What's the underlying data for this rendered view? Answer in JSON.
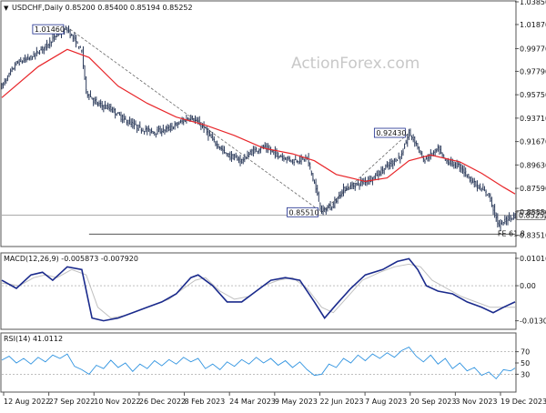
{
  "header": {
    "symbol_ohlc": "USDCHF,Daily  0.85200 0.85400 0.85194 0.85252",
    "watermark": "ActionForex.com"
  },
  "chart_data": [
    {
      "type": "candlestick",
      "title": "USDCHF,Daily",
      "ohlc_last": {
        "open": 0.852,
        "high": 0.854,
        "low": 0.85194,
        "close": 0.85252
      },
      "ylim": [
        0.826,
        1.0385
      ],
      "y_ticks": [
        "1.03850",
        "1.01870",
        "0.99770",
        "0.97790",
        "0.95750",
        "0.93710",
        "0.91670",
        "0.89630",
        "0.87590",
        "0.85550",
        "0.83510"
      ],
      "x_ticks": [
        "12 Aug 2022",
        "27 Sep 2022",
        "10 Nov 2022",
        "26 Dec 2022",
        "8 Feb 2023",
        "24 Mar 2023",
        "9 May 2023",
        "22 Jun 2023",
        "7 Aug 2023",
        "20 Sep 2023",
        "3 Nov 2023",
        "19 Dec 2023"
      ],
      "price_path": [
        [
          0,
          0.965
        ],
        [
          10,
          0.985
        ],
        [
          20,
          0.99
        ],
        [
          30,
          1.0
        ],
        [
          40,
          1.012
        ],
        [
          45,
          1.0146
        ],
        [
          50,
          1.005
        ],
        [
          55,
          0.995
        ],
        [
          58,
          0.96
        ],
        [
          65,
          0.95
        ],
        [
          75,
          0.945
        ],
        [
          85,
          0.935
        ],
        [
          95,
          0.928
        ],
        [
          105,
          0.925
        ],
        [
          115,
          0.928
        ],
        [
          125,
          0.935
        ],
        [
          130,
          0.938
        ],
        [
          138,
          0.93
        ],
        [
          145,
          0.918
        ],
        [
          155,
          0.905
        ],
        [
          165,
          0.9
        ],
        [
          172,
          0.908
        ],
        [
          180,
          0.912
        ],
        [
          190,
          0.905
        ],
        [
          200,
          0.9
        ],
        [
          210,
          0.902
        ],
        [
          215,
          0.88
        ],
        [
          220,
          0.8551
        ],
        [
          228,
          0.862
        ],
        [
          235,
          0.875
        ],
        [
          245,
          0.88
        ],
        [
          255,
          0.885
        ],
        [
          265,
          0.895
        ],
        [
          275,
          0.905
        ],
        [
          280,
          0.9243
        ],
        [
          285,
          0.915
        ],
        [
          290,
          0.9
        ],
        [
          300,
          0.91
        ],
        [
          305,
          0.9
        ],
        [
          315,
          0.895
        ],
        [
          325,
          0.88
        ],
        [
          335,
          0.87
        ],
        [
          340,
          0.85
        ],
        [
          342,
          0.843
        ],
        [
          348,
          0.85
        ],
        [
          353,
          0.8525
        ]
      ],
      "series": [
        {
          "name": "",
          "kind": "moving-average",
          "color": "#e8262a",
          "values": [
            [
              0,
              0.955
            ],
            [
              25,
              0.982
            ],
            [
              45,
              0.997
            ],
            [
              60,
              0.99
            ],
            [
              80,
              0.965
            ],
            [
              100,
              0.95
            ],
            [
              120,
              0.938
            ],
            [
              140,
              0.931
            ],
            [
              160,
              0.922
            ],
            [
              180,
              0.911
            ],
            [
              200,
              0.906
            ],
            [
              215,
              0.9
            ],
            [
              230,
              0.888
            ],
            [
              250,
              0.882
            ],
            [
              265,
              0.885
            ],
            [
              280,
              0.9
            ],
            [
              295,
              0.905
            ],
            [
              315,
              0.899
            ],
            [
              330,
              0.889
            ],
            [
              345,
              0.877
            ],
            [
              353,
              0.871
            ]
          ]
        }
      ],
      "labels": [
        {
          "text": "1.01460",
          "x": 45,
          "y": 1.0146
        },
        {
          "text": "0.85510",
          "x": 220,
          "y": 0.8551
        },
        {
          "text": "0.92430",
          "x": 280,
          "y": 0.9243
        },
        {
          "text": "0.85252",
          "x": 353,
          "y": 0.85252,
          "role": "last-price"
        },
        {
          "text": "FE 61.8",
          "x": 346,
          "y": 0.836
        }
      ],
      "trendlines": [
        {
          "from": [
            47,
            1.0146
          ],
          "to": [
            220,
            0.8551
          ],
          "style": "dashed"
        },
        {
          "from": [
            220,
            0.8551
          ],
          "to": [
            280,
            0.9243
          ],
          "style": "dashed"
        }
      ],
      "levels": [
        {
          "y": 0.836,
          "label": "FE 61.8"
        },
        {
          "y": 0.85252,
          "label": "0.85252"
        }
      ],
      "grid": false
    },
    {
      "type": "line",
      "title": "MACD(12,26,9) -0.005873 -0.007920",
      "ylim": [
        -0.0155,
        0.0115
      ],
      "y_ticks": [
        "0.010166",
        "0.00",
        "-0.013006"
      ],
      "series": [
        {
          "name": "",
          "color": "#1a2a8c",
          "values": [
            [
              0,
              0.002
            ],
            [
              10,
              -0.001
            ],
            [
              20,
              0.004
            ],
            [
              28,
              0.005
            ],
            [
              35,
              0.002
            ],
            [
              45,
              0.007
            ],
            [
              55,
              0.006
            ],
            [
              62,
              -0.012
            ],
            [
              70,
              -0.013
            ],
            [
              80,
              -0.012
            ],
            [
              90,
              -0.01
            ],
            [
              100,
              -0.008
            ],
            [
              110,
              -0.006
            ],
            [
              120,
              -0.003
            ],
            [
              130,
              0.003
            ],
            [
              135,
              0.004
            ],
            [
              145,
              0.0
            ],
            [
              155,
              -0.006
            ],
            [
              165,
              -0.006
            ],
            [
              175,
              -0.002
            ],
            [
              185,
              0.002
            ],
            [
              195,
              0.003
            ],
            [
              205,
              0.002
            ],
            [
              215,
              -0.006
            ],
            [
              222,
              -0.012
            ],
            [
              230,
              -0.007
            ],
            [
              240,
              -0.001
            ],
            [
              250,
              0.004
            ],
            [
              262,
              0.006
            ],
            [
              272,
              0.009
            ],
            [
              280,
              0.01
            ],
            [
              286,
              0.006
            ],
            [
              292,
              0.0
            ],
            [
              300,
              -0.002
            ],
            [
              310,
              -0.003
            ],
            [
              320,
              -0.006
            ],
            [
              330,
              -0.008
            ],
            [
              338,
              -0.01
            ],
            [
              345,
              -0.008
            ],
            [
              353,
              -0.006
            ]
          ]
        },
        {
          "name": "",
          "color": "#c0c0c0",
          "values": [
            [
              0,
              0.001
            ],
            [
              12,
              0.0
            ],
            [
              22,
              0.003
            ],
            [
              30,
              0.004
            ],
            [
              38,
              0.003
            ],
            [
              48,
              0.006
            ],
            [
              58,
              0.004
            ],
            [
              66,
              -0.008
            ],
            [
              75,
              -0.012
            ],
            [
              85,
              -0.011
            ],
            [
              95,
              -0.009
            ],
            [
              105,
              -0.007
            ],
            [
              115,
              -0.005
            ],
            [
              125,
              -0.001
            ],
            [
              133,
              0.002
            ],
            [
              140,
              0.003
            ],
            [
              150,
              -0.002
            ],
            [
              160,
              -0.005
            ],
            [
              170,
              -0.004
            ],
            [
              180,
              0.0
            ],
            [
              190,
              0.002
            ],
            [
              200,
              0.003
            ],
            [
              210,
              -0.001
            ],
            [
              220,
              -0.008
            ],
            [
              228,
              -0.01
            ],
            [
              238,
              -0.004
            ],
            [
              248,
              0.002
            ],
            [
              260,
              0.005
            ],
            [
              270,
              0.007
            ],
            [
              280,
              0.008
            ],
            [
              288,
              0.007
            ],
            [
              296,
              0.002
            ],
            [
              306,
              -0.001
            ],
            [
              316,
              -0.004
            ],
            [
              326,
              -0.006
            ],
            [
              336,
              -0.008
            ],
            [
              344,
              -0.008
            ],
            [
              353,
              -0.008
            ]
          ]
        }
      ]
    },
    {
      "type": "line",
      "title": "RSI(14) 41.0112",
      "ylim": [
        0,
        100
      ],
      "y_ticks": [
        "70",
        "50",
        "30"
      ],
      "levels": [
        70,
        30
      ],
      "series": [
        {
          "name": "",
          "color": "#2f93e0",
          "values": [
            [
              0,
              55
            ],
            [
              5,
              62
            ],
            [
              10,
              50
            ],
            [
              15,
              58
            ],
            [
              20,
              48
            ],
            [
              25,
              60
            ],
            [
              30,
              52
            ],
            [
              35,
              64
            ],
            [
              40,
              58
            ],
            [
              45,
              66
            ],
            [
              50,
              44
            ],
            [
              55,
              38
            ],
            [
              60,
              30
            ],
            [
              65,
              46
            ],
            [
              70,
              40
            ],
            [
              75,
              55
            ],
            [
              80,
              42
            ],
            [
              85,
              50
            ],
            [
              90,
              35
            ],
            [
              95,
              48
            ],
            [
              100,
              40
            ],
            [
              105,
              54
            ],
            [
              110,
              45
            ],
            [
              115,
              56
            ],
            [
              120,
              48
            ],
            [
              125,
              60
            ],
            [
              130,
              52
            ],
            [
              135,
              58
            ],
            [
              140,
              40
            ],
            [
              145,
              48
            ],
            [
              150,
              38
            ],
            [
              155,
              52
            ],
            [
              160,
              44
            ],
            [
              165,
              56
            ],
            [
              170,
              48
            ],
            [
              175,
              60
            ],
            [
              180,
              50
            ],
            [
              185,
              58
            ],
            [
              190,
              46
            ],
            [
              195,
              54
            ],
            [
              200,
              42
            ],
            [
              205,
              52
            ],
            [
              210,
              38
            ],
            [
              215,
              28
            ],
            [
              220,
              30
            ],
            [
              225,
              48
            ],
            [
              230,
              42
            ],
            [
              235,
              58
            ],
            [
              240,
              50
            ],
            [
              245,
              64
            ],
            [
              250,
              54
            ],
            [
              255,
              66
            ],
            [
              260,
              58
            ],
            [
              265,
              68
            ],
            [
              270,
              60
            ],
            [
              275,
              72
            ],
            [
              280,
              78
            ],
            [
              285,
              62
            ],
            [
              290,
              52
            ],
            [
              295,
              64
            ],
            [
              300,
              48
            ],
            [
              305,
              58
            ],
            [
              310,
              40
            ],
            [
              315,
              50
            ],
            [
              320,
              36
            ],
            [
              325,
              42
            ],
            [
              330,
              28
            ],
            [
              335,
              34
            ],
            [
              340,
              22
            ],
            [
              345,
              38
            ],
            [
              350,
              36
            ],
            [
              353,
              41
            ]
          ]
        }
      ]
    }
  ]
}
